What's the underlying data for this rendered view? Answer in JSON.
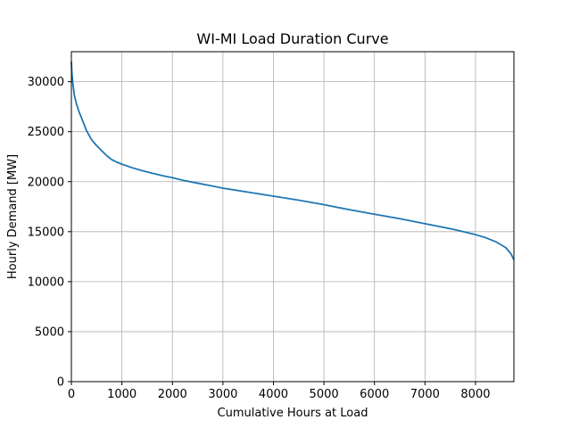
{
  "chart_data": {
    "type": "line",
    "title": "WI-MI Load Duration Curve",
    "xlabel": "Cumulative Hours at Load",
    "ylabel": "Hourly Demand [MW]",
    "xlim": [
      0,
      8760
    ],
    "ylim": [
      0,
      33000
    ],
    "xticks": [
      0,
      1000,
      2000,
      3000,
      4000,
      5000,
      6000,
      7000,
      8000
    ],
    "yticks": [
      0,
      5000,
      10000,
      15000,
      20000,
      25000,
      30000
    ],
    "grid": true,
    "legend": "none",
    "series": [
      {
        "color": "#1f77b4",
        "x": [
          0,
          10,
          30,
          60,
          100,
          150,
          200,
          300,
          400,
          500,
          600,
          700,
          800,
          900,
          1000,
          1200,
          1400,
          1600,
          1800,
          2000,
          2200,
          2500,
          2800,
          3000,
          3500,
          4000,
          4500,
          5000,
          5500,
          6000,
          6500,
          7000,
          7500,
          7800,
          8000,
          8200,
          8400,
          8500,
          8600,
          8650,
          8700,
          8730,
          8760
        ],
        "y": [
          32000,
          30900,
          29800,
          28600,
          27800,
          27000,
          26400,
          25100,
          24200,
          23600,
          23100,
          22600,
          22200,
          21950,
          21750,
          21400,
          21100,
          20850,
          20600,
          20400,
          20150,
          19850,
          19550,
          19350,
          18950,
          18550,
          18150,
          17700,
          17200,
          16750,
          16300,
          15800,
          15300,
          14950,
          14700,
          14400,
          14000,
          13700,
          13400,
          13100,
          12800,
          12500,
          12200
        ]
      }
    ]
  }
}
